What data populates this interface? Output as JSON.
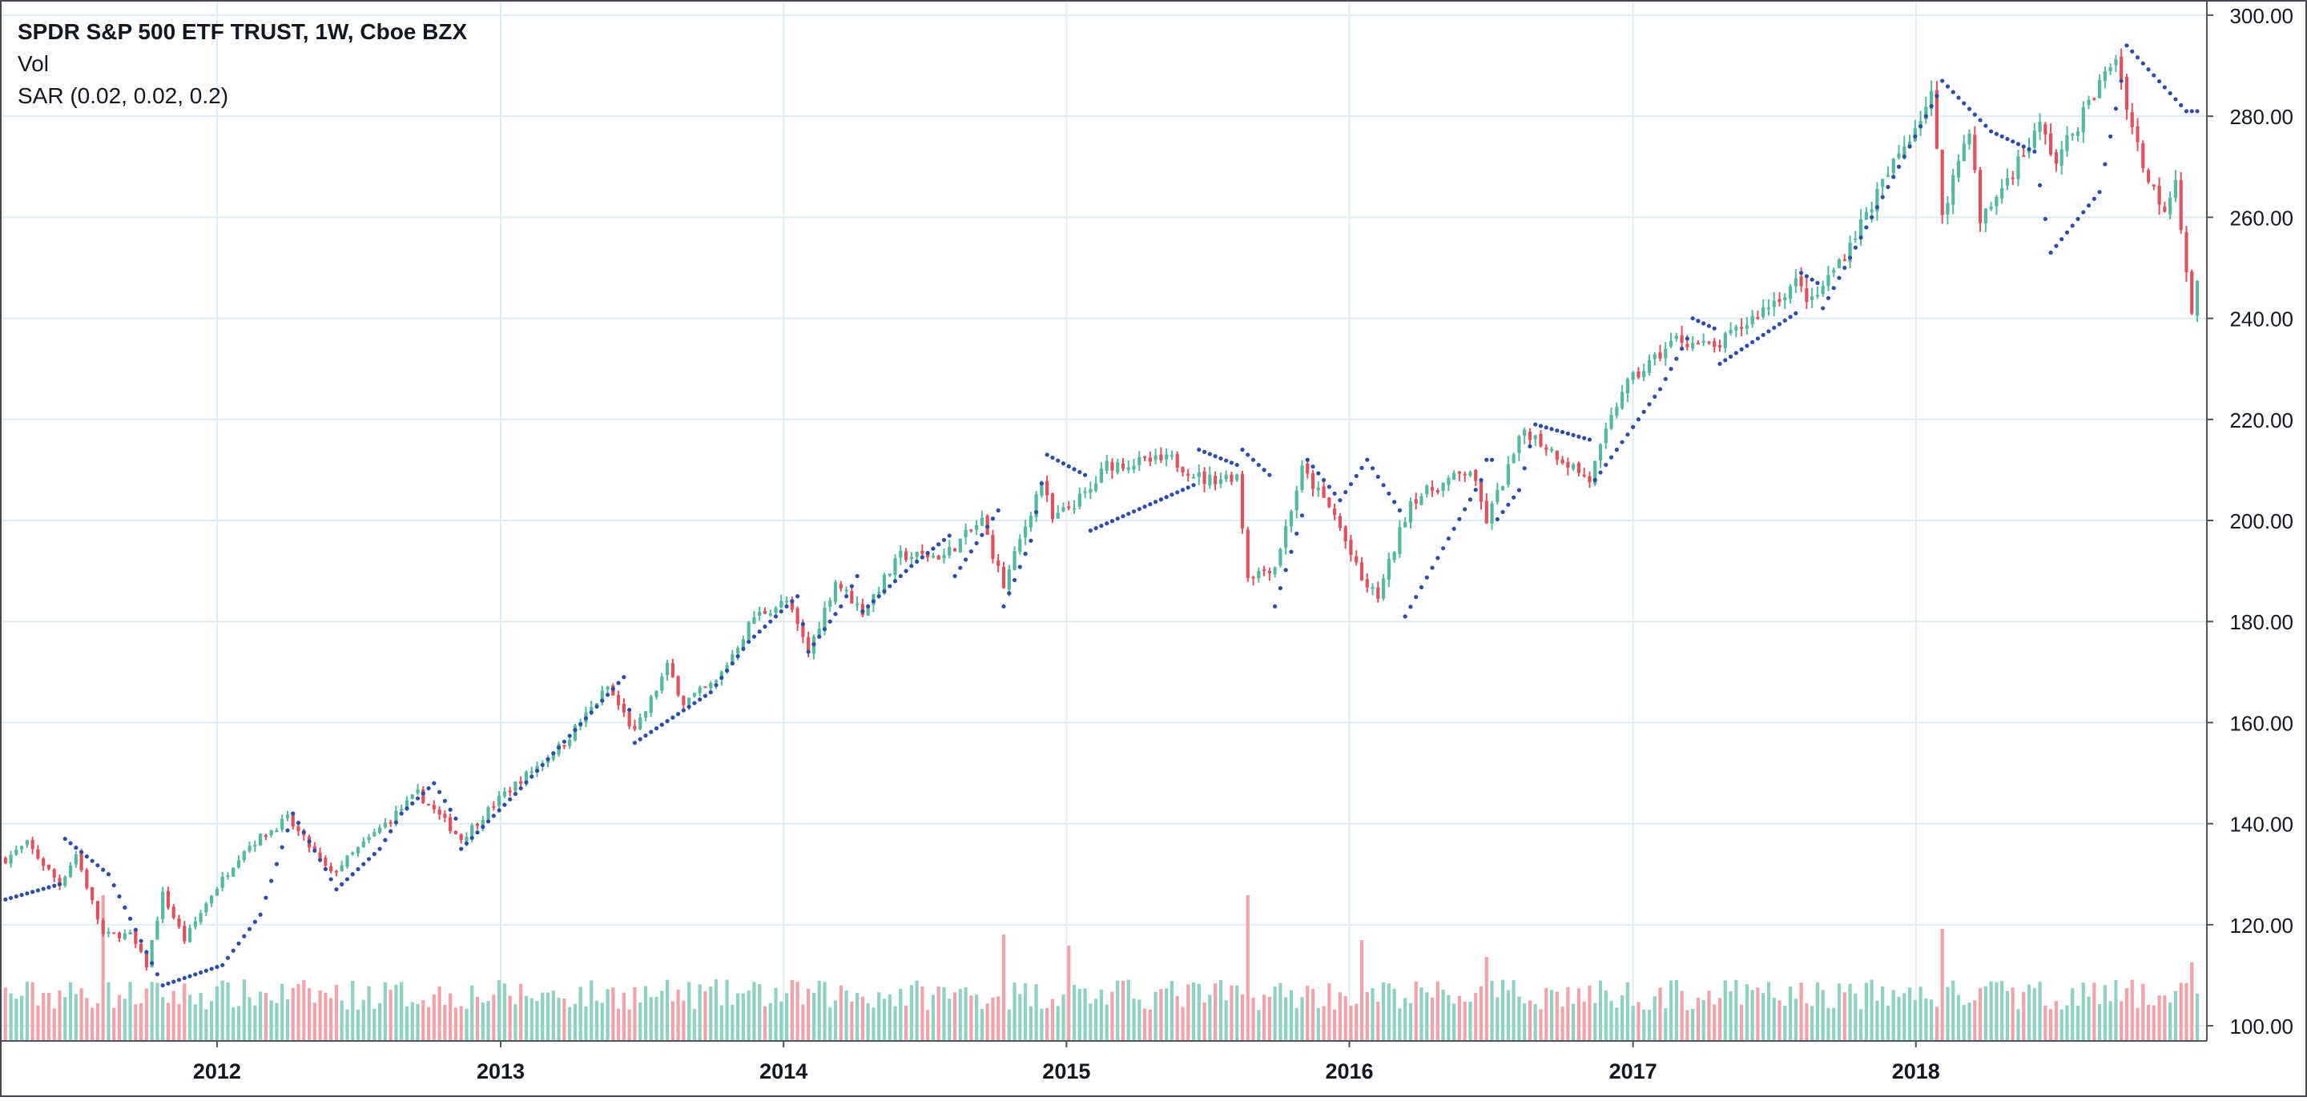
{
  "legend": {
    "symbol": "SPDR S&P 500 ETF TRUST, 1W, Cboe BZX",
    "volume": "Vol",
    "sar": "SAR (0.02, 0.02, 0.2)"
  },
  "colors": {
    "up": "#53b9a0",
    "down": "#e0505d",
    "up_volume": "#8fd1c3",
    "down_volume": "#f2a3aa",
    "sar": "#2b4da8",
    "grid": "#e1ecf2",
    "axis_text": "#131722"
  },
  "chart_data": {
    "type": "candlestick",
    "title": "SPDR S&P 500 ETF TRUST, 1W, Cboe BZX",
    "interval": "1W",
    "y_axis": {
      "side": "right",
      "ylim": [
        97,
        303
      ],
      "ticks": [
        "100.00",
        "120.00",
        "140.00",
        "160.00",
        "180.00",
        "200.00",
        "220.00",
        "240.00",
        "260.00",
        "280.00",
        "300.00"
      ]
    },
    "x_axis": {
      "xlim": [
        "2011-03-28",
        "2018-12-31"
      ],
      "ticks": [
        "2012",
        "2013",
        "2014",
        "2015",
        "2016",
        "2017",
        "2018"
      ]
    },
    "price_path": [
      [
        "2011-04-04",
        133
      ],
      [
        "2011-05-02",
        136
      ],
      [
        "2011-06-13",
        128
      ],
      [
        "2011-07-04",
        134
      ],
      [
        "2011-08-08",
        118
      ],
      [
        "2011-09-12",
        118
      ],
      [
        "2011-10-03",
        112
      ],
      [
        "2011-10-24",
        126
      ],
      [
        "2011-11-21",
        117
      ],
      [
        "2011-12-26",
        126
      ],
      [
        "2012-02-06",
        135
      ],
      [
        "2012-04-02",
        141
      ],
      [
        "2012-05-28",
        130
      ],
      [
        "2012-06-25",
        134
      ],
      [
        "2012-09-17",
        146
      ],
      [
        "2012-11-12",
        137
      ],
      [
        "2013-01-07",
        146
      ],
      [
        "2013-03-25",
        156
      ],
      [
        "2013-05-20",
        167
      ],
      [
        "2013-06-24",
        158
      ],
      [
        "2013-08-05",
        171
      ],
      [
        "2013-08-26",
        164
      ],
      [
        "2013-10-07",
        168
      ],
      [
        "2013-11-25",
        181
      ],
      [
        "2014-01-06",
        184
      ],
      [
        "2014-02-03",
        174
      ],
      [
        "2014-03-10",
        188
      ],
      [
        "2014-04-14",
        182
      ],
      [
        "2014-06-02",
        193
      ],
      [
        "2014-07-28",
        193
      ],
      [
        "2014-09-15",
        200
      ],
      [
        "2014-10-13",
        187
      ],
      [
        "2014-12-01",
        208
      ],
      [
        "2014-12-15",
        200
      ],
      [
        "2015-02-02",
        206
      ],
      [
        "2015-02-23",
        211
      ],
      [
        "2015-05-18",
        212
      ],
      [
        "2015-06-29",
        208
      ],
      [
        "2015-08-10",
        209
      ],
      [
        "2015-08-24",
        189
      ],
      [
        "2015-09-28",
        191
      ],
      [
        "2015-11-02",
        210
      ],
      [
        "2015-12-14",
        201
      ],
      [
        "2016-01-18",
        188
      ],
      [
        "2016-02-08",
        185
      ],
      [
        "2016-03-21",
        204
      ],
      [
        "2016-06-06",
        210
      ],
      [
        "2016-06-27",
        200
      ],
      [
        "2016-08-15",
        218
      ],
      [
        "2016-11-07",
        208
      ],
      [
        "2016-12-19",
        226
      ],
      [
        "2017-02-27",
        236
      ],
      [
        "2017-04-17",
        234
      ],
      [
        "2017-07-31",
        247
      ],
      [
        "2017-08-21",
        243
      ],
      [
        "2017-10-02",
        253
      ],
      [
        "2018-01-22",
        284
      ],
      [
        "2018-02-05",
        261
      ],
      [
        "2018-03-12",
        278
      ],
      [
        "2018-03-26",
        259
      ],
      [
        "2018-06-11",
        278
      ],
      [
        "2018-07-02",
        271
      ],
      [
        "2018-09-17",
        292
      ],
      [
        "2018-10-08",
        278
      ],
      [
        "2018-10-29",
        267
      ],
      [
        "2018-11-19",
        262
      ],
      [
        "2018-12-03",
        268
      ],
      [
        "2018-12-24",
        240
      ],
      [
        "2018-12-31",
        248
      ]
    ],
    "sar_path": [
      [
        "2011-04-04",
        125
      ],
      [
        "2011-06-13",
        128
      ],
      [
        "2011-06-20",
        137
      ],
      [
        "2011-08-15",
        130
      ],
      [
        "2011-10-24",
        108
      ],
      [
        "2012-01-09",
        112
      ],
      [
        "2012-02-27",
        122
      ],
      [
        "2012-04-09",
        142
      ],
      [
        "2012-05-21",
        131
      ],
      [
        "2012-06-04",
        127
      ],
      [
        "2012-07-30",
        135
      ],
      [
        "2012-08-27",
        142
      ],
      [
        "2012-10-08",
        148
      ],
      [
        "2012-11-05",
        141
      ],
      [
        "2012-11-12",
        135
      ],
      [
        "2013-01-28",
        147
      ],
      [
        "2013-04-29",
        162
      ],
      [
        "2013-06-10",
        169
      ],
      [
        "2013-06-24",
        156
      ],
      [
        "2013-09-30",
        166
      ],
      [
        "2013-11-18",
        176
      ],
      [
        "2014-01-20",
        185
      ],
      [
        "2014-02-03",
        174
      ],
      [
        "2014-03-17",
        183
      ],
      [
        "2014-04-07",
        189
      ],
      [
        "2014-04-14",
        182
      ],
      [
        "2014-06-16",
        191
      ],
      [
        "2014-08-04",
        197
      ],
      [
        "2014-08-11",
        189
      ],
      [
        "2014-10-06",
        202
      ],
      [
        "2014-10-13",
        183
      ],
      [
        "2014-11-17",
        196
      ],
      [
        "2014-12-08",
        213
      ],
      [
        "2015-01-26",
        209
      ],
      [
        "2015-02-02",
        198
      ],
      [
        "2015-06-15",
        207
      ],
      [
        "2015-06-22",
        214
      ],
      [
        "2015-08-10",
        211
      ],
      [
        "2015-08-17",
        214
      ],
      [
        "2015-09-21",
        209
      ],
      [
        "2015-09-28",
        183
      ],
      [
        "2015-11-02",
        201
      ],
      [
        "2015-11-09",
        212
      ],
      [
        "2015-12-21",
        204
      ],
      [
        "2016-01-25",
        212
      ],
      [
        "2016-03-07",
        202
      ],
      [
        "2016-03-14",
        181
      ],
      [
        "2016-06-20",
        208
      ],
      [
        "2016-06-27",
        212
      ],
      [
        "2016-07-05",
        199
      ],
      [
        "2016-08-08",
        206
      ],
      [
        "2016-08-29",
        219
      ],
      [
        "2016-11-07",
        216
      ],
      [
        "2016-11-14",
        208
      ],
      [
        "2017-02-06",
        226
      ],
      [
        "2017-03-13",
        236
      ],
      [
        "2017-03-20",
        240
      ],
      [
        "2017-04-17",
        238
      ],
      [
        "2017-04-24",
        231
      ],
      [
        "2017-07-31",
        241
      ],
      [
        "2017-08-07",
        249
      ],
      [
        "2017-08-28",
        247
      ],
      [
        "2017-09-04",
        242
      ],
      [
        "2018-01-29",
        284
      ],
      [
        "2018-02-05",
        287
      ],
      [
        "2018-04-09",
        277
      ],
      [
        "2018-06-04",
        273
      ],
      [
        "2018-06-25",
        253
      ],
      [
        "2018-08-27",
        265
      ],
      [
        "2018-09-24",
        287
      ],
      [
        "2018-10-01",
        294
      ],
      [
        "2018-12-17",
        281
      ]
    ],
    "volume": {
      "spike_weeks": [
        [
          "2011-08-08",
          2.6
        ],
        [
          "2011-06-13",
          0.9
        ],
        [
          "2014-10-13",
          1.9
        ],
        [
          "2015-01-05",
          1.7
        ],
        [
          "2015-08-24",
          2.6
        ],
        [
          "2016-01-18",
          1.8
        ],
        [
          "2016-06-27",
          1.5
        ],
        [
          "2018-02-05",
          2.0
        ],
        [
          "2018-12-24",
          1.4
        ]
      ]
    }
  }
}
